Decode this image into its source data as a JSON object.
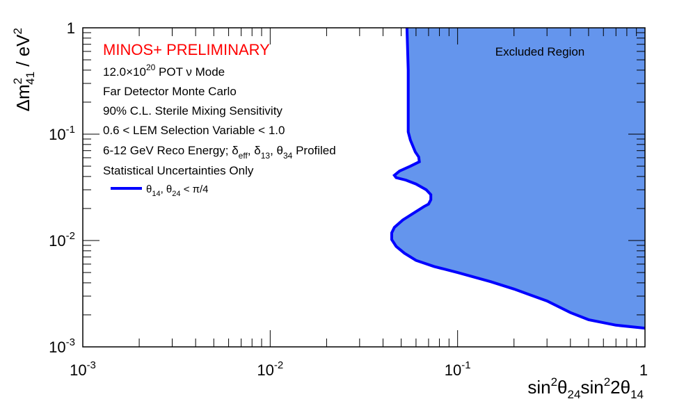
{
  "chart_data": {
    "type": "area",
    "xscale": "log",
    "yscale": "log",
    "xlim": [
      0.001,
      1
    ],
    "ylim": [
      0.001,
      1
    ],
    "x_ticks": [
      {
        "value": 0.001,
        "base": "10",
        "exp": "-3"
      },
      {
        "value": 0.01,
        "base": "10",
        "exp": "-2"
      },
      {
        "value": 0.1,
        "base": "10",
        "exp": "-1"
      },
      {
        "value": 1,
        "base": "1",
        "exp": ""
      }
    ],
    "y_ticks": [
      {
        "value": 0.001,
        "base": "10",
        "exp": "-3"
      },
      {
        "value": 0.01,
        "base": "10",
        "exp": "-2"
      },
      {
        "value": 0.1,
        "base": "10",
        "exp": "-1"
      },
      {
        "value": 1,
        "base": "1",
        "exp": ""
      }
    ],
    "xlabel_parts": {
      "a": "sin",
      "a_sup": "2",
      "b": "θ",
      "b_sub": "24",
      "c": "sin",
      "c_sup": "2",
      "d": "2θ",
      "d_sub": "14"
    },
    "ylabel_parts": {
      "a": "Δm",
      "a_sup": "2",
      "a_sub": "41",
      "b": " / eV",
      "b_sup": "2"
    },
    "region_label": "Excluded Region",
    "fill_color": "#6495ed",
    "line_color": "#0000ff",
    "annotations": {
      "title": "MINOS+ PRELIMINARY",
      "title_color": "#ff0000",
      "pot_a": "12.0×10",
      "pot_sup": "20",
      "pot_b": " POT ν Mode",
      "line2": "Far Detector Monte Carlo",
      "line3": "90% C.L. Sterile Mixing Sensitivity",
      "line4": "0.6 < LEM Selection Variable < 1.0",
      "line5_a": "6-12 GeV Reco Energy; δ",
      "line5_sub1": "eff",
      "line5_b": ", δ",
      "line5_sub2": "13",
      "line5_c": ", θ",
      "line5_sub3": "34",
      "line5_d": " Profiled",
      "line6": "Statistical Uncertainties Only"
    },
    "legend": {
      "a": "θ",
      "a_sub": "14",
      "b": ", θ",
      "b_sub": "24",
      "c": " < π/4"
    },
    "series": [
      {
        "points": [
          [
            0.0537,
            1.0
          ],
          [
            0.054,
            0.7
          ],
          [
            0.0545,
            0.4
          ],
          [
            0.0545,
            0.25
          ],
          [
            0.0545,
            0.15
          ],
          [
            0.0545,
            0.105
          ],
          [
            0.056,
            0.088
          ],
          [
            0.0595,
            0.068
          ],
          [
            0.062,
            0.061
          ],
          [
            0.0625,
            0.055
          ],
          [
            0.056,
            0.05
          ],
          [
            0.049,
            0.045
          ],
          [
            0.046,
            0.041
          ],
          [
            0.047,
            0.039
          ],
          [
            0.053,
            0.037
          ],
          [
            0.06,
            0.034
          ],
          [
            0.068,
            0.03
          ],
          [
            0.072,
            0.027
          ],
          [
            0.072,
            0.0242
          ],
          [
            0.07,
            0.022
          ],
          [
            0.066,
            0.0208
          ],
          [
            0.058,
            0.018
          ],
          [
            0.051,
            0.0156
          ],
          [
            0.046,
            0.0133
          ],
          [
            0.0445,
            0.0118
          ],
          [
            0.0445,
            0.0102
          ],
          [
            0.047,
            0.0088
          ],
          [
            0.052,
            0.0076
          ],
          [
            0.06,
            0.0065
          ],
          [
            0.075,
            0.0057
          ],
          [
            0.1,
            0.005
          ],
          [
            0.15,
            0.0041
          ],
          [
            0.2,
            0.0035
          ],
          [
            0.3,
            0.0027
          ],
          [
            0.4,
            0.0021
          ],
          [
            0.5,
            0.0018
          ],
          [
            0.7,
            0.0016
          ],
          [
            1.0,
            0.0015
          ]
        ]
      }
    ]
  }
}
